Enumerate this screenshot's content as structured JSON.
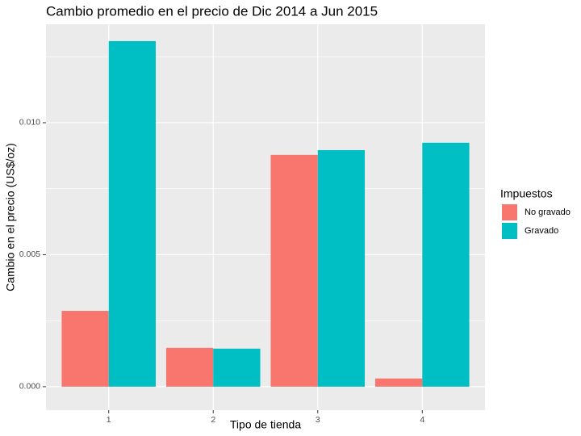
{
  "chart_data": {
    "type": "bar",
    "title": "Cambio promedio en el precio de Dic 2014 a Jun 2015",
    "x_label": "Tipo de tienda",
    "y_label": "Cambio en el precio (US$/oz)",
    "legend_title": "Impuestos",
    "legend_position": "right",
    "categories": [
      "1",
      "2",
      "3",
      "4"
    ],
    "series": [
      {
        "name": "No gravado",
        "color": "#f8766d",
        "values": [
          0.00287,
          0.00147,
          0.00878,
          0.00031
        ]
      },
      {
        "name": "Gravado",
        "color": "#00bfc4",
        "values": [
          0.01309,
          0.00144,
          0.00896,
          0.00924
        ]
      }
    ],
    "ylim": [
      -0.00089,
      0.01373
    ],
    "yticks": [
      {
        "value": 0,
        "label": "0.000"
      },
      {
        "value": 0.005,
        "label": "0.005"
      },
      {
        "value": 0.01,
        "label": "0.010"
      }
    ],
    "minor_yticks": [
      0.0025,
      0.0075,
      0.0125
    ],
    "grid": true
  }
}
